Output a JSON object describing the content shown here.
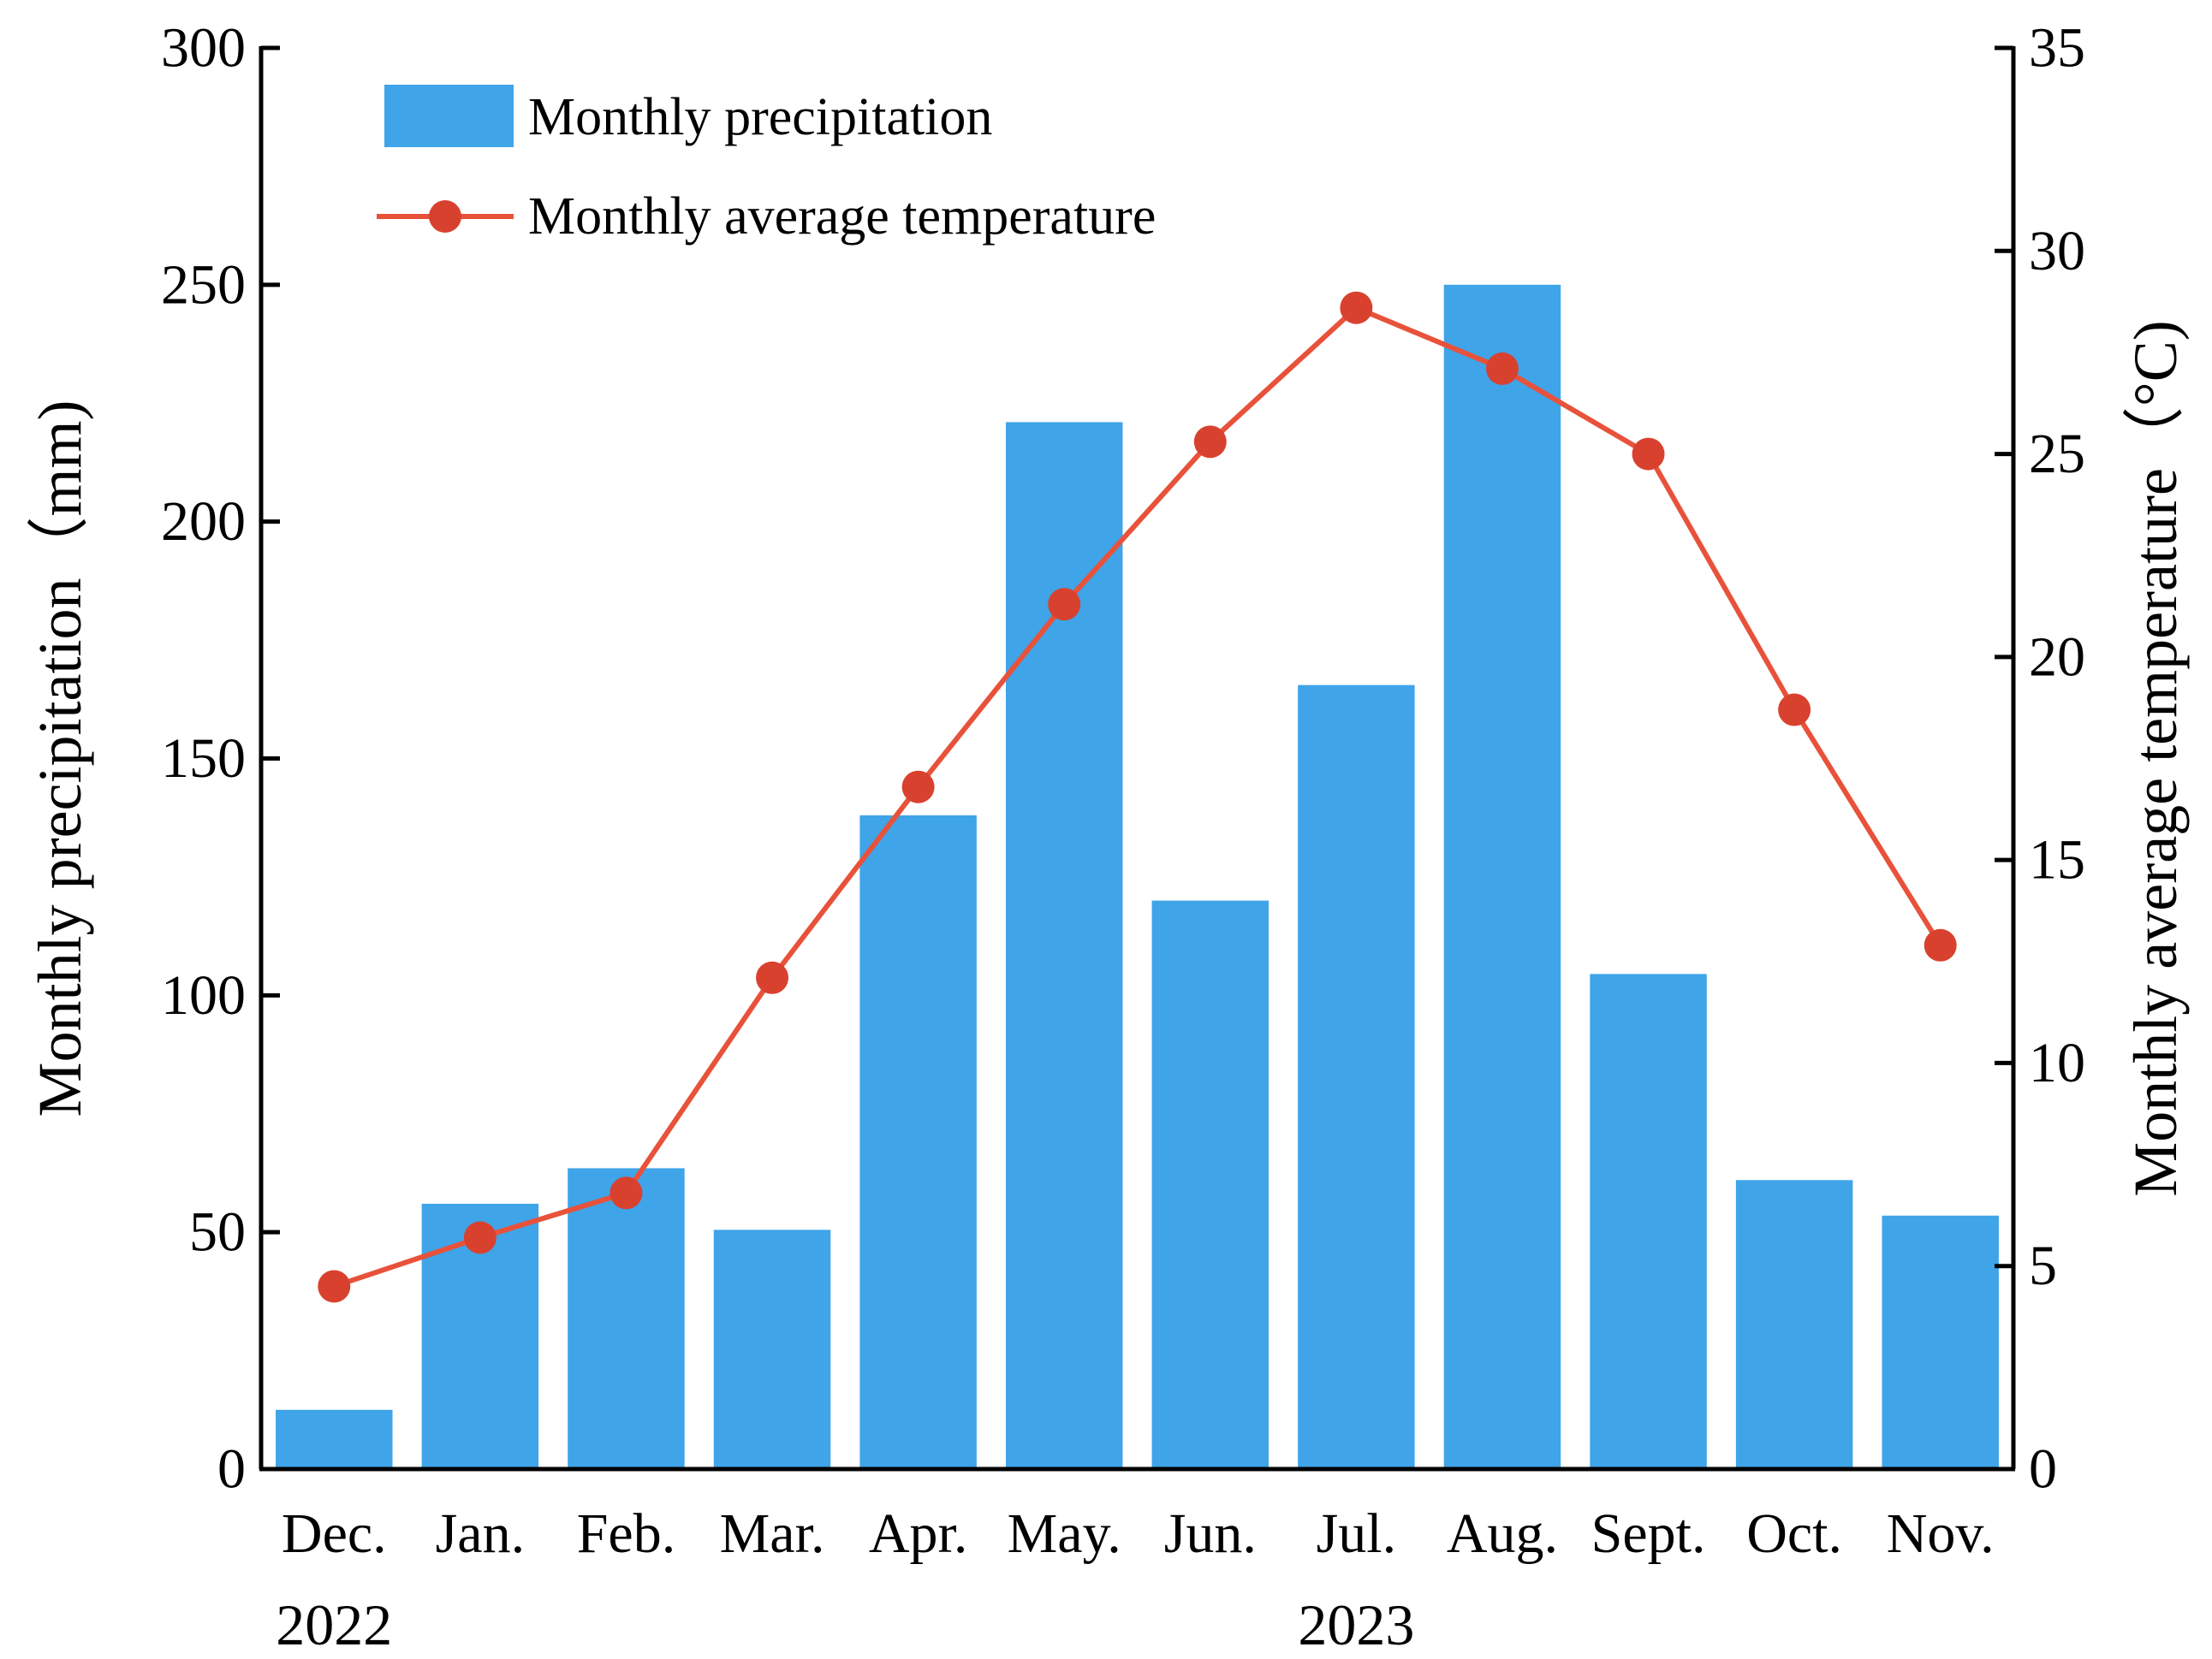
{
  "chart_data": {
    "type": "bar",
    "categories": [
      "Dec.",
      "Jan.",
      "Feb.",
      "Mar.",
      "Apr.",
      "May.",
      "Jun.",
      "Jul.",
      "Aug.",
      "Sept.",
      "Oct.",
      "Nov."
    ],
    "year_labels": [
      {
        "label": "2022",
        "category": "Dec."
      },
      {
        "label": "2023",
        "category": "Jul."
      }
    ],
    "series": [
      {
        "name": "Monthly precipitation",
        "type": "bar",
        "axis": "left",
        "color": "#3fa4e8",
        "values": [
          12.5,
          56,
          63.5,
          50.5,
          138,
          221,
          120,
          165.5,
          250,
          104.5,
          61,
          53.5
        ]
      },
      {
        "name": "Monthly average temperature",
        "type": "line",
        "axis": "right",
        "color": "#e8523a",
        "values": [
          4.5,
          5.7,
          6.8,
          12.1,
          16.8,
          21.3,
          25.3,
          28.6,
          27.1,
          25.0,
          18.7,
          12.9
        ]
      }
    ],
    "y_left": {
      "label": "Monthly precipitation（mm)",
      "range": [
        0,
        300
      ],
      "ticks": [
        "0",
        "50",
        "100",
        "150",
        "200",
        "250",
        "300"
      ]
    },
    "y_right": {
      "label": "Monthly average temperature（°C)",
      "range": [
        0,
        35
      ],
      "ticks": [
        "0",
        "5",
        "10",
        "15",
        "20",
        "25",
        "30",
        "35"
      ]
    },
    "xlabel": "",
    "title": "",
    "legend_position": "top-left",
    "grid": false
  }
}
